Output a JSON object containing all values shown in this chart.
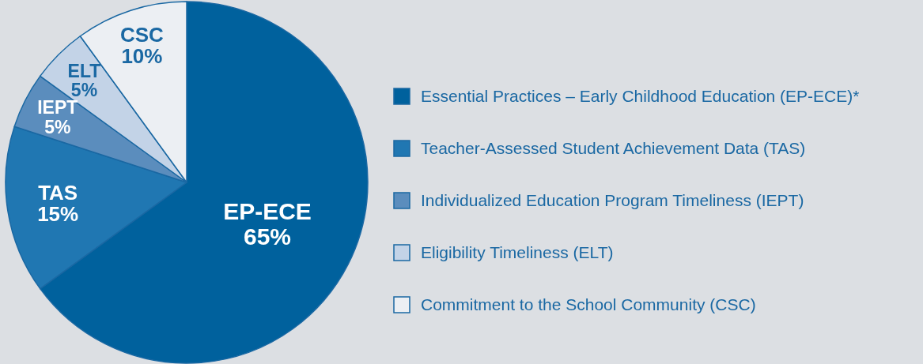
{
  "chart_data": {
    "type": "pie",
    "categories": [
      "Essential Practices – Early Childhood Education (EP-ECE)*",
      "Teacher-Assessed Student Achievement Data (TAS)",
      "Individualized Education Program Timeliness (IEPT)",
      "Eligibility Timeliness (ELT)",
      "Commitment to the School Community (CSC)"
    ],
    "values": [
      65,
      15,
      5,
      5,
      10
    ],
    "colors": [
      "#00619d",
      "#2077b2",
      "#5b8dbd",
      "#c3d3e7",
      "#eceff3"
    ],
    "annotations": [
      "EP-ECE",
      "TAS",
      "IEPT",
      "ELT",
      "CSC"
    ],
    "value_labels": [
      "65%",
      "15%",
      "5%",
      "5%",
      "10%"
    ],
    "legend": "right"
  }
}
